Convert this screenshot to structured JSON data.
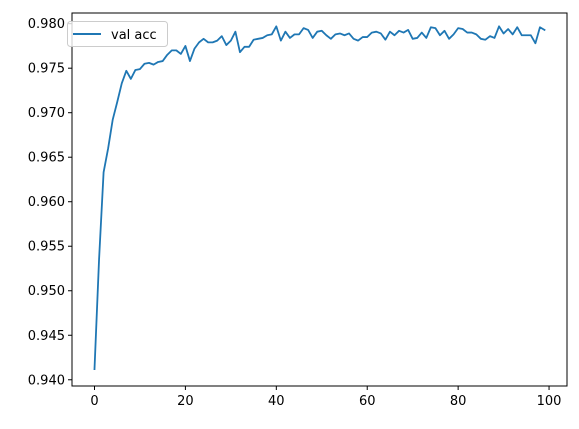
{
  "chart_data": {
    "type": "line",
    "title": "",
    "xlabel": "",
    "ylabel": "",
    "xlim": [
      -4.95,
      103.95
    ],
    "ylim": [
      0.9393,
      0.9812
    ],
    "xticks": [
      0,
      20,
      40,
      60,
      80,
      100
    ],
    "yticks": [
      0.94,
      0.945,
      0.95,
      0.955,
      0.96,
      0.965,
      0.97,
      0.975,
      0.98
    ],
    "grid": false,
    "legend": {
      "position": "top-left"
    },
    "series": [
      {
        "name": "val acc",
        "color": "#1f77b4",
        "x": [
          0,
          1,
          2,
          3,
          4,
          5,
          6,
          7,
          8,
          9,
          10,
          11,
          12,
          13,
          14,
          15,
          16,
          17,
          18,
          19,
          20,
          21,
          22,
          23,
          24,
          25,
          26,
          27,
          28,
          29,
          30,
          31,
          32,
          33,
          34,
          35,
          36,
          37,
          38,
          39,
          40,
          41,
          42,
          43,
          44,
          45,
          46,
          47,
          48,
          49,
          50,
          51,
          52,
          53,
          54,
          55,
          56,
          57,
          58,
          59,
          60,
          61,
          62,
          63,
          64,
          65,
          66,
          67,
          68,
          69,
          70,
          71,
          72,
          73,
          74,
          75,
          76,
          77,
          78,
          79,
          80,
          81,
          82,
          83,
          84,
          85,
          86,
          87,
          88,
          89,
          90,
          91,
          92,
          93,
          94,
          95,
          96,
          97,
          98,
          99
        ],
        "y": [
          0.9412,
          0.9535,
          0.9633,
          0.966,
          0.9692,
          0.9712,
          0.9733,
          0.9747,
          0.9738,
          0.9748,
          0.9749,
          0.9755,
          0.9756,
          0.9754,
          0.9757,
          0.9758,
          0.9765,
          0.977,
          0.977,
          0.9766,
          0.9775,
          0.9758,
          0.9772,
          0.9779,
          0.9783,
          0.9779,
          0.9779,
          0.9781,
          0.9786,
          0.9776,
          0.9781,
          0.9791,
          0.9768,
          0.9774,
          0.9774,
          0.9782,
          0.9783,
          0.9784,
          0.9787,
          0.9788,
          0.9797,
          0.9781,
          0.9791,
          0.9784,
          0.9788,
          0.9788,
          0.9795,
          0.9793,
          0.9784,
          0.9791,
          0.9792,
          0.9787,
          0.9783,
          0.9788,
          0.9789,
          0.9787,
          0.9789,
          0.9783,
          0.9781,
          0.9785,
          0.9785,
          0.979,
          0.9791,
          0.9789,
          0.9782,
          0.9791,
          0.9787,
          0.9792,
          0.979,
          0.9793,
          0.9783,
          0.9784,
          0.979,
          0.9784,
          0.9796,
          0.9795,
          0.9787,
          0.9792,
          0.9783,
          0.9788,
          0.9795,
          0.9794,
          0.979,
          0.979,
          0.9788,
          0.9783,
          0.9782,
          0.9786,
          0.9784,
          0.9797,
          0.9789,
          0.9794,
          0.9788,
          0.9796,
          0.9787,
          0.9787,
          0.9787,
          0.9778,
          0.9796,
          0.9793
        ]
      }
    ]
  }
}
